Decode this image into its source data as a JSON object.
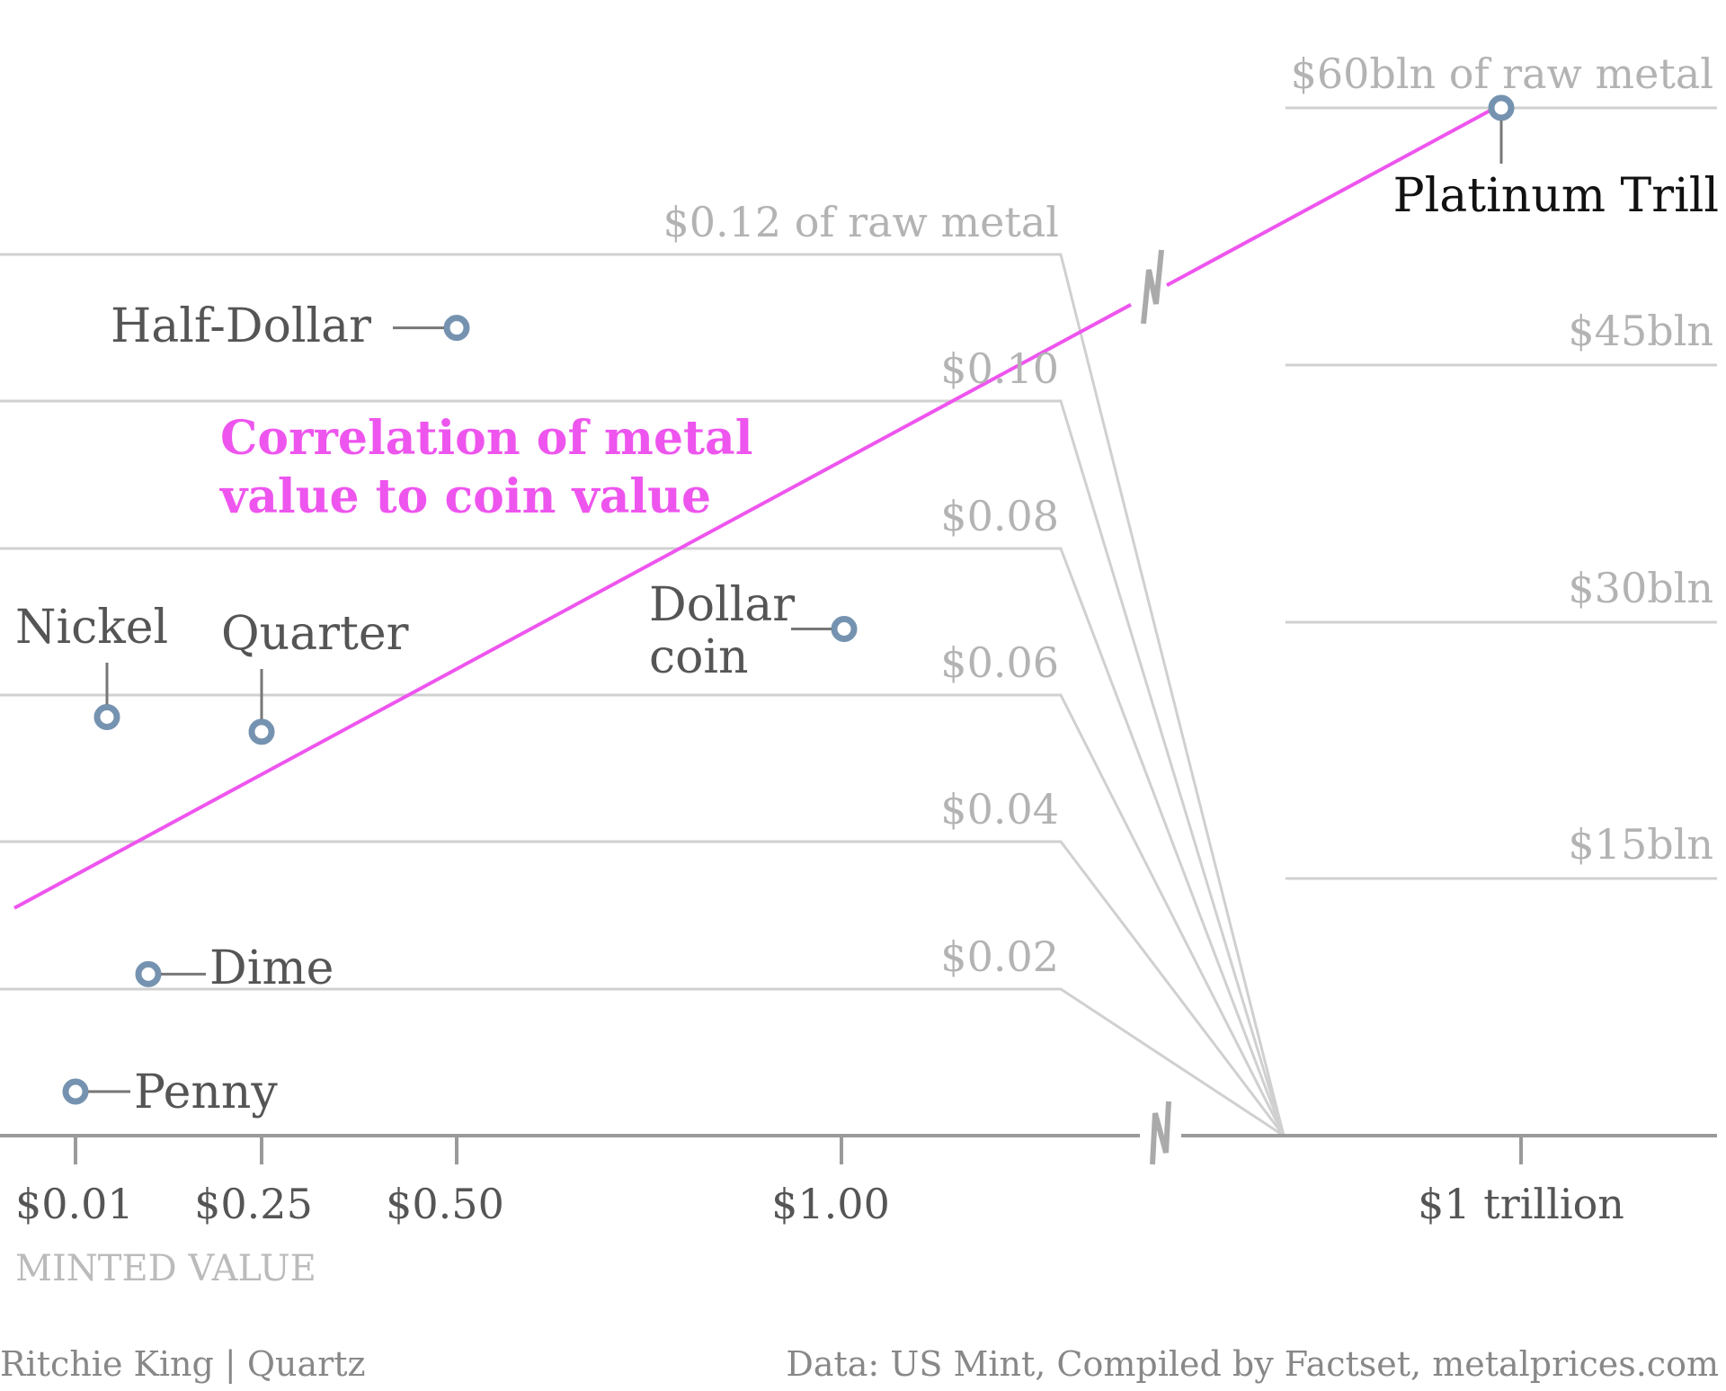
{
  "chart_data": {
    "type": "scatter",
    "title": "",
    "annotation": "Correlation of metal value to coin value",
    "annotation_lines": [
      "Correlation of metal",
      "value to coin value"
    ],
    "colors": {
      "points": "#7593b0",
      "fit_line": "#ee55ee",
      "grid": "#d0d0d0",
      "axis": "#9a9a9a"
    },
    "x_axis": {
      "title": "MINTED VALUE",
      "scale": "broken",
      "ticks": [
        "$0.01",
        "$0.25",
        "$0.50",
        "$1.00",
        "$1 trillion"
      ]
    },
    "y_axis_left": {
      "ylim": [
        0,
        0.12
      ],
      "gridlines": [
        0.02,
        0.04,
        0.06,
        0.08,
        0.1,
        0.12
      ],
      "labels": [
        "$0.02",
        "$0.04",
        "$0.06",
        "$0.08",
        "$0.10",
        "$0.12 of raw metal"
      ]
    },
    "y_axis_right": {
      "ylim": [
        0,
        60
      ],
      "unit": "billion dollars",
      "gridlines": [
        15,
        30,
        45,
        60
      ],
      "labels": [
        "$15bln",
        "$30bln",
        "$45bln",
        "$60bln of raw metal"
      ]
    },
    "points": [
      {
        "name": "Penny",
        "x": 0.01,
        "y": 0.006,
        "axis": "left"
      },
      {
        "name": "Nickel",
        "x": 0.05,
        "y": 0.057,
        "axis": "left"
      },
      {
        "name": "Dime",
        "x": 0.1,
        "y": 0.022,
        "axis": "left"
      },
      {
        "name": "Quarter",
        "x": 0.25,
        "y": 0.055,
        "axis": "left"
      },
      {
        "name": "Half-Dollar",
        "x": 0.5,
        "y": 0.11,
        "axis": "left"
      },
      {
        "name": "Dollar coin",
        "x": 1.0,
        "y": 0.069,
        "axis": "left"
      },
      {
        "name": "Platinum Trill",
        "x": "$1 trillion",
        "y": 60,
        "axis": "right"
      }
    ],
    "fit_line": {
      "from": {
        "x": 0.0,
        "y": 0.031
      },
      "to": {
        "x": "$1 trillion",
        "y": 60
      }
    },
    "grid": true
  },
  "credits": {
    "left": "Ritchie King | Quartz",
    "right": "Data: US Mint, Compiled by Factset, metalprices.com"
  }
}
